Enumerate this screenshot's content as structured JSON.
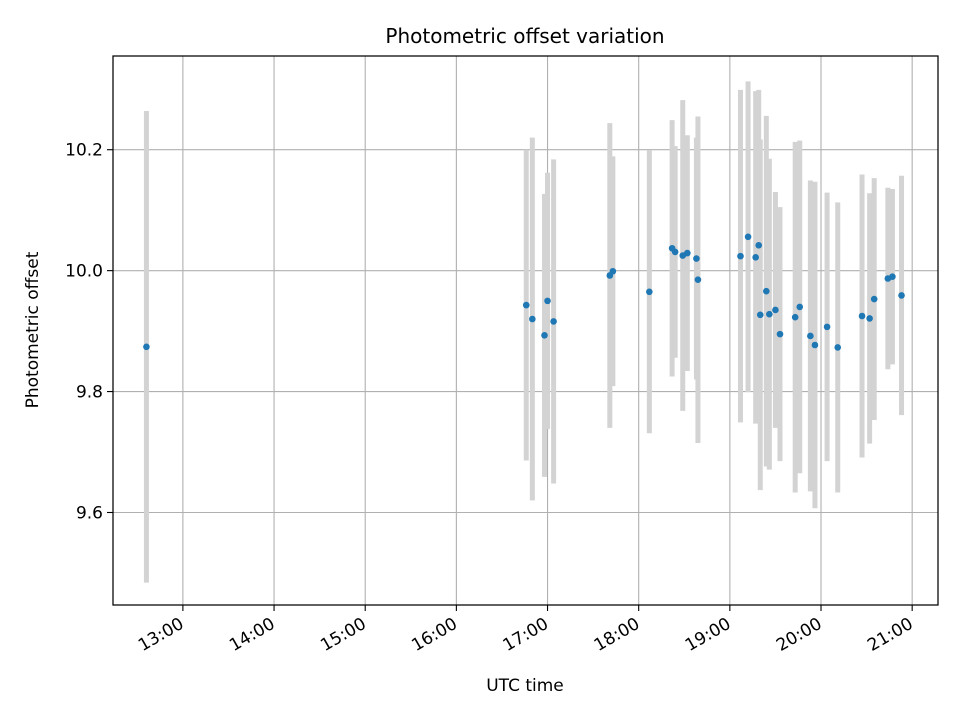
{
  "chart_data": {
    "type": "scatter",
    "title": "Photometric offset variation",
    "xlabel": "UTC time",
    "ylabel": "Photometric offset",
    "x_unit": "hours UTC",
    "xlim": [
      "12:14",
      "21:17"
    ],
    "ylim": [
      9.447,
      10.355
    ],
    "x_ticks": [
      "13:00",
      "14:00",
      "15:00",
      "16:00",
      "17:00",
      "18:00",
      "19:00",
      "20:00",
      "21:00"
    ],
    "y_ticks": [
      "9.6",
      "9.8",
      "10.0",
      "10.2"
    ],
    "y_tick_values": [
      9.6,
      9.8,
      10.0,
      10.2
    ],
    "grid": true,
    "point_color": "#1f77b4",
    "errorbar_color": "#d3d3d3",
    "points": [
      {
        "x": "12:36",
        "y": 9.874,
        "err": 0.39
      },
      {
        "x": "16:46",
        "y": 9.943,
        "err": 0.257
      },
      {
        "x": "16:50",
        "y": 9.92,
        "err": 0.3
      },
      {
        "x": "16:58",
        "y": 9.893,
        "err": 0.234
      },
      {
        "x": "17:00",
        "y": 9.95,
        "err": 0.212
      },
      {
        "x": "17:04",
        "y": 9.916,
        "err": 0.268
      },
      {
        "x": "17:41",
        "y": 9.992,
        "err": 0.252
      },
      {
        "x": "17:43",
        "y": 9.999,
        "err": 0.19
      },
      {
        "x": "18:07",
        "y": 9.965,
        "err": 0.234
      },
      {
        "x": "18:22",
        "y": 10.037,
        "err": 0.212
      },
      {
        "x": "18:24",
        "y": 10.031,
        "err": 0.175
      },
      {
        "x": "18:29",
        "y": 10.025,
        "err": 0.257
      },
      {
        "x": "18:32",
        "y": 10.029,
        "err": 0.195
      },
      {
        "x": "18:38",
        "y": 10.02,
        "err": 0.2
      },
      {
        "x": "18:39",
        "y": 9.985,
        "err": 0.27
      },
      {
        "x": "19:07",
        "y": 10.024,
        "err": 0.275
      },
      {
        "x": "19:12",
        "y": 10.056,
        "err": 0.257
      },
      {
        "x": "19:17",
        "y": 10.022,
        "err": 0.275
      },
      {
        "x": "19:19",
        "y": 10.042,
        "err": 0.257
      },
      {
        "x": "19:20",
        "y": 9.927,
        "err": 0.29
      },
      {
        "x": "19:24",
        "y": 9.966,
        "err": 0.29
      },
      {
        "x": "19:26",
        "y": 9.928,
        "err": 0.257
      },
      {
        "x": "19:30",
        "y": 9.935,
        "err": 0.195
      },
      {
        "x": "19:33",
        "y": 9.895,
        "err": 0.21
      },
      {
        "x": "19:43",
        "y": 9.923,
        "err": 0.29
      },
      {
        "x": "19:46",
        "y": 9.94,
        "err": 0.275
      },
      {
        "x": "19:53",
        "y": 9.892,
        "err": 0.257
      },
      {
        "x": "19:56",
        "y": 9.877,
        "err": 0.27
      },
      {
        "x": "20:04",
        "y": 9.907,
        "err": 0.222
      },
      {
        "x": "20:11",
        "y": 9.873,
        "err": 0.24
      },
      {
        "x": "20:27",
        "y": 9.925,
        "err": 0.234
      },
      {
        "x": "20:32",
        "y": 9.921,
        "err": 0.207
      },
      {
        "x": "20:35",
        "y": 9.953,
        "err": 0.2
      },
      {
        "x": "20:44",
        "y": 9.987,
        "err": 0.15
      },
      {
        "x": "20:47",
        "y": 9.99,
        "err": 0.145
      },
      {
        "x": "20:53",
        "y": 9.959,
        "err": 0.198
      }
    ]
  }
}
